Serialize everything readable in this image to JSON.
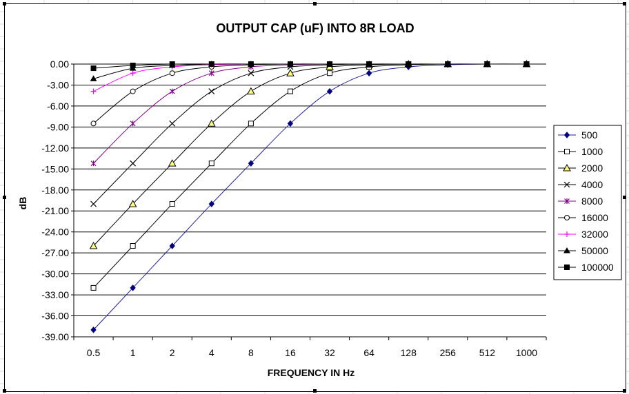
{
  "chart_data": {
    "type": "line",
    "title": "OUTPUT CAP (uF) INTO 8R LOAD",
    "xlabel": "FREQUENCY IN Hz",
    "ylabel": "dB",
    "categories": [
      "0.5",
      "1",
      "2",
      "4",
      "8",
      "16",
      "32",
      "64",
      "128",
      "256",
      "512",
      "1000"
    ],
    "ylim": [
      -39,
      0
    ],
    "yticks": [
      "0.00",
      "-3.00",
      "-6.00",
      "-9.00",
      "-12.00",
      "-15.00",
      "-18.00",
      "-21.00",
      "-24.00",
      "-27.00",
      "-30.00",
      "-33.00",
      "-36.00",
      "-39.00"
    ],
    "grid": true,
    "legend_position": "right",
    "series": [
      {
        "name": "500",
        "marker": "diamond",
        "color": "#1f1f8f",
        "marker_fill": "#000080",
        "values": [
          -38.0,
          -32.0,
          -26.0,
          -20.0,
          -14.2,
          -8.5,
          -3.9,
          -1.3,
          -0.4,
          -0.1,
          0.0,
          0.0
        ]
      },
      {
        "name": "1000",
        "marker": "square-open",
        "color": "#000000",
        "marker_fill": "#ffffff",
        "values": [
          -32.0,
          -26.0,
          -20.0,
          -14.2,
          -8.5,
          -3.9,
          -1.3,
          -0.4,
          -0.1,
          0.0,
          0.0,
          0.0
        ]
      },
      {
        "name": "2000",
        "marker": "triangle",
        "color": "#000000",
        "marker_fill": "#ffff80",
        "values": [
          -26.0,
          -20.0,
          -14.2,
          -8.5,
          -3.9,
          -1.3,
          -0.4,
          -0.1,
          0.0,
          0.0,
          0.0,
          0.0
        ]
      },
      {
        "name": "4000",
        "marker": "x",
        "color": "#000000",
        "marker_fill": "#000000",
        "values": [
          -20.0,
          -14.2,
          -8.5,
          -3.9,
          -1.3,
          -0.4,
          -0.1,
          0.0,
          0.0,
          0.0,
          0.0,
          0.0
        ]
      },
      {
        "name": "8000",
        "marker": "star",
        "color": "#800080",
        "marker_fill": "#800080",
        "values": [
          -14.2,
          -8.5,
          -3.9,
          -1.3,
          -0.4,
          -0.1,
          0.0,
          0.0,
          0.0,
          0.0,
          0.0,
          0.0
        ]
      },
      {
        "name": "16000",
        "marker": "circle-open",
        "color": "#000000",
        "marker_fill": "#ffffff",
        "values": [
          -8.5,
          -3.9,
          -1.3,
          -0.4,
          -0.1,
          0.0,
          0.0,
          0.0,
          0.0,
          0.0,
          0.0,
          0.0
        ]
      },
      {
        "name": "32000",
        "marker": "plus",
        "color": "#ff00ff",
        "marker_fill": "#ff00ff",
        "values": [
          -3.9,
          -1.3,
          -0.4,
          -0.1,
          0.0,
          0.0,
          0.0,
          0.0,
          0.0,
          0.0,
          0.0,
          0.0
        ]
      },
      {
        "name": "50000",
        "marker": "triangle-filled",
        "color": "#000000",
        "marker_fill": "#000000",
        "values": [
          -2.1,
          -0.6,
          -0.2,
          0.0,
          0.0,
          0.0,
          0.0,
          0.0,
          0.0,
          0.0,
          0.0,
          0.0
        ]
      },
      {
        "name": "100000",
        "marker": "square-filled",
        "color": "#000000",
        "marker_fill": "#000000",
        "values": [
          -0.6,
          -0.2,
          0.0,
          0.0,
          0.0,
          0.0,
          0.0,
          0.0,
          0.0,
          0.0,
          0.0,
          0.0
        ]
      }
    ]
  }
}
